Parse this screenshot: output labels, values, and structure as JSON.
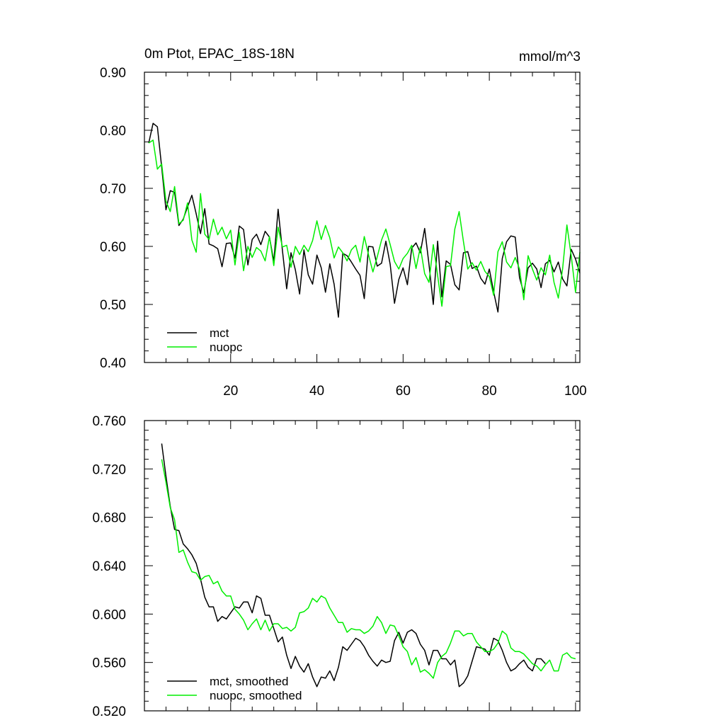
{
  "colors": {
    "mct": "#000000",
    "nuopc": "#00ee00",
    "axis": "#000000",
    "background": "#ffffff"
  },
  "chart_data": [
    {
      "type": "line",
      "title": "0m Ptot, EPAC_18S-18N",
      "units_label": "mmol/m^3",
      "xlabel": "",
      "ylabel": "",
      "xlim": [
        0,
        101
      ],
      "ylim": [
        0.4,
        0.9
      ],
      "yticks": [
        "0.40",
        "0.50",
        "0.60",
        "0.70",
        "0.80",
        "0.90"
      ],
      "xticks": [
        "20",
        "40",
        "60",
        "80",
        "100"
      ],
      "legend": {
        "position": "bottom-left",
        "entries": [
          "mct",
          "nuopc"
        ]
      },
      "x_start": 1,
      "series": [
        {
          "name": "mct",
          "color": "#000000",
          "values": [
            0.778,
            0.812,
            0.806,
            0.736,
            0.663,
            0.696,
            0.693,
            0.636,
            0.647,
            0.668,
            0.688,
            0.656,
            0.622,
            0.665,
            0.604,
            0.601,
            0.596,
            0.565,
            0.605,
            0.606,
            0.58,
            0.635,
            0.629,
            0.568,
            0.612,
            0.621,
            0.603,
            0.626,
            0.616,
            0.574,
            0.664,
            0.593,
            0.527,
            0.589,
            0.56,
            0.518,
            0.594,
            0.551,
            0.535,
            0.585,
            0.563,
            0.521,
            0.57,
            0.535,
            0.478,
            0.588,
            0.584,
            0.573,
            0.561,
            0.55,
            0.51,
            0.6,
            0.599,
            0.566,
            0.571,
            0.609,
            0.569,
            0.502,
            0.543,
            0.563,
            0.534,
            0.597,
            0.606,
            0.589,
            0.631,
            0.569,
            0.5,
            0.609,
            0.513,
            0.575,
            0.569,
            0.534,
            0.525,
            0.589,
            0.591,
            0.562,
            0.566,
            0.545,
            0.535,
            0.561,
            0.522,
            0.487,
            0.579,
            0.608,
            0.618,
            0.616,
            0.546,
            0.52,
            0.563,
            0.571,
            0.561,
            0.529,
            0.57,
            0.576,
            0.556,
            0.573,
            0.544,
            0.532,
            0.595,
            0.578,
            0.554
          ]
        },
        {
          "name": "nuopc",
          "color": "#00ee00",
          "values": [
            0.778,
            0.783,
            0.733,
            0.742,
            0.678,
            0.66,
            0.703,
            0.639,
            0.645,
            0.675,
            0.611,
            0.59,
            0.691,
            0.621,
            0.612,
            0.647,
            0.62,
            0.633,
            0.613,
            0.628,
            0.568,
            0.624,
            0.558,
            0.6,
            0.581,
            0.598,
            0.592,
            0.575,
            0.617,
            0.567,
            0.633,
            0.599,
            0.602,
            0.564,
            0.6,
            0.586,
            0.602,
            0.591,
            0.61,
            0.644,
            0.612,
            0.636,
            0.615,
            0.58,
            0.599,
            0.589,
            0.575,
            0.594,
            0.602,
            0.573,
            0.617,
            0.585,
            0.556,
            0.582,
            0.611,
            0.63,
            0.603,
            0.574,
            0.561,
            0.579,
            0.588,
            0.602,
            0.562,
            0.599,
            0.553,
            0.538,
            0.603,
            0.55,
            0.497,
            0.565,
            0.567,
            0.63,
            0.66,
            0.608,
            0.561,
            0.572,
            0.559,
            0.574,
            0.557,
            0.548,
            0.516,
            0.591,
            0.608,
            0.573,
            0.563,
            0.581,
            0.561,
            0.508,
            0.584,
            0.561,
            0.542,
            0.563,
            0.551,
            0.585,
            0.538,
            0.511,
            0.561,
            0.637,
            0.584,
            0.521,
            0.59
          ]
        }
      ]
    },
    {
      "type": "line",
      "title": "",
      "xlabel": "",
      "ylabel": "",
      "xlim": [
        0,
        101
      ],
      "ylim": [
        0.52,
        0.76
      ],
      "yticks": [
        "0.520",
        "0.560",
        "0.600",
        "0.640",
        "0.680",
        "0.720",
        "0.760"
      ],
      "legend": {
        "position": "bottom-left",
        "entries": [
          "mct, smoothed",
          "nuopc, smoothed"
        ]
      },
      "x_start": 4,
      "series": [
        {
          "name": "mct, smoothed",
          "color": "#000000",
          "values": [
            0.741,
            0.714,
            0.689,
            0.67,
            0.669,
            0.658,
            0.654,
            0.649,
            0.642,
            0.629,
            0.614,
            0.606,
            0.606,
            0.594,
            0.598,
            0.596,
            0.601,
            0.606,
            0.605,
            0.61,
            0.61,
            0.601,
            0.615,
            0.613,
            0.599,
            0.599,
            0.588,
            0.577,
            0.581,
            0.566,
            0.555,
            0.565,
            0.557,
            0.552,
            0.559,
            0.548,
            0.54,
            0.548,
            0.547,
            0.553,
            0.545,
            0.556,
            0.573,
            0.57,
            0.575,
            0.58,
            0.578,
            0.573,
            0.566,
            0.561,
            0.557,
            0.562,
            0.56,
            0.561,
            0.578,
            0.585,
            0.576,
            0.585,
            0.587,
            0.584,
            0.575,
            0.57,
            0.558,
            0.57,
            0.57,
            0.563,
            0.563,
            0.558,
            0.562,
            0.54,
            0.543,
            0.549,
            0.561,
            0.573,
            0.572,
            0.571,
            0.566,
            0.58,
            0.578,
            0.57,
            0.56,
            0.553,
            0.555,
            0.559,
            0.562,
            0.556,
            0.553,
            0.563,
            0.563,
            0.559
          ]
        },
        {
          "name": "nuopc, smoothed",
          "color": "#00ee00",
          "values": [
            0.728,
            0.709,
            0.688,
            0.678,
            0.651,
            0.653,
            0.643,
            0.635,
            0.634,
            0.628,
            0.631,
            0.632,
            0.625,
            0.627,
            0.619,
            0.615,
            0.615,
            0.604,
            0.6,
            0.595,
            0.587,
            0.592,
            0.596,
            0.587,
            0.595,
            0.586,
            0.592,
            0.592,
            0.588,
            0.589,
            0.586,
            0.589,
            0.601,
            0.602,
            0.605,
            0.613,
            0.61,
            0.615,
            0.613,
            0.605,
            0.599,
            0.593,
            0.593,
            0.585,
            0.588,
            0.587,
            0.587,
            0.584,
            0.586,
            0.59,
            0.598,
            0.593,
            0.584,
            0.591,
            0.59,
            0.582,
            0.573,
            0.569,
            0.558,
            0.564,
            0.552,
            0.554,
            0.551,
            0.547,
            0.56,
            0.565,
            0.568,
            0.576,
            0.586,
            0.586,
            0.582,
            0.584,
            0.584,
            0.577,
            0.573,
            0.569,
            0.569,
            0.571,
            0.576,
            0.586,
            0.583,
            0.572,
            0.569,
            0.569,
            0.567,
            0.563,
            0.559,
            0.557,
            0.553,
            0.558,
            0.562,
            0.553,
            0.553,
            0.566,
            0.568,
            0.564,
            0.563
          ]
        }
      ]
    }
  ]
}
